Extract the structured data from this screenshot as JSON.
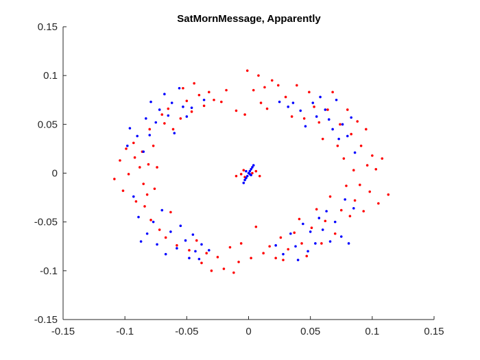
{
  "chart_data": {
    "type": "scatter",
    "title": "SatMornMessage, Apparently",
    "xlabel": "",
    "ylabel": "",
    "xlim": [
      -0.15,
      0.15
    ],
    "ylim": [
      -0.15,
      0.15
    ],
    "xticks": [
      -0.15,
      -0.1,
      -0.05,
      0,
      0.05,
      0.1,
      0.15
    ],
    "yticks": [
      -0.15,
      -0.1,
      -0.05,
      0,
      0.05,
      0.1,
      0.15
    ],
    "xtick_labels": [
      "-0.15",
      "-0.1",
      "-0.05",
      "0",
      "0.05",
      "0.1",
      "0.15"
    ],
    "ytick_labels": [
      "-0.15",
      "-0.1",
      "-0.05",
      "0",
      "0.05",
      "0.1",
      "0.15"
    ],
    "grid": false,
    "legend": "none",
    "series": [
      {
        "color": "#ff0000",
        "points": [
          [
            -0.1085,
            -0.006
          ],
          [
            -0.104,
            0.013
          ],
          [
            -0.099,
            0.025
          ],
          [
            -0.1015,
            -0.018
          ],
          [
            -0.097,
            -0.001
          ],
          [
            -0.093,
            0.031
          ],
          [
            -0.092,
            0.016
          ],
          [
            -0.091,
            -0.029
          ],
          [
            -0.088,
            0.006
          ],
          [
            -0.086,
            0.022
          ],
          [
            -0.085,
            -0.011
          ],
          [
            -0.084,
            -0.034
          ],
          [
            -0.082,
            -0.022
          ],
          [
            -0.081,
            0.009
          ],
          [
            -0.08,
            0.045
          ],
          [
            -0.079,
            -0.048
          ],
          [
            -0.077,
            0.028
          ],
          [
            -0.076,
            -0.016
          ],
          [
            -0.074,
            0.006
          ],
          [
            -0.072,
            -0.058
          ],
          [
            -0.07,
            0.06
          ],
          [
            -0.068,
            0.051
          ],
          [
            -0.067,
            -0.066
          ],
          [
            -0.065,
            0.066
          ],
          [
            -0.063,
            -0.04
          ],
          [
            -0.061,
            0.045
          ],
          [
            -0.058,
            -0.074
          ],
          [
            -0.055,
            0.056
          ],
          [
            -0.053,
            0.087
          ],
          [
            -0.05,
            0.074
          ],
          [
            -0.048,
            -0.079
          ],
          [
            -0.046,
            0.063
          ],
          [
            -0.044,
            0.092
          ],
          [
            -0.042,
            -0.069
          ],
          [
            -0.04,
            0.08
          ],
          [
            -0.038,
            -0.092
          ],
          [
            -0.036,
            0.069
          ],
          [
            -0.034,
            -0.082
          ],
          [
            -0.032,
            0.083
          ],
          [
            -0.03,
            -0.1
          ],
          [
            -0.028,
            0.075
          ],
          [
            -0.025,
            -0.086
          ],
          [
            -0.022,
            0.073
          ],
          [
            -0.02,
            -0.098
          ],
          [
            -0.018,
            0.085
          ],
          [
            -0.015,
            -0.076
          ],
          [
            -0.012,
            -0.102
          ],
          [
            -0.01,
            0.064
          ],
          [
            -0.008,
            -0.091
          ],
          [
            -0.006,
            -0.072
          ],
          [
            -0.004,
            0.003
          ],
          [
            -0.003,
            0.06
          ],
          [
            -0.001,
            0.105
          ],
          [
            0.002,
            -0.087
          ],
          [
            0.004,
            0.085
          ],
          [
            0.006,
            -0.055
          ],
          [
            0.008,
            0.1
          ],
          [
            0.01,
            0.072
          ],
          [
            0.012,
            -0.082
          ],
          [
            0.013,
            0.088
          ],
          [
            0.015,
            0.066
          ],
          [
            0.017,
            -0.075
          ],
          [
            0.019,
            0.095
          ],
          [
            0.022,
            -0.087
          ],
          [
            0.024,
            0.09
          ],
          [
            0.026,
            -0.066
          ],
          [
            0.028,
            -0.089
          ],
          [
            0.03,
            0.078
          ],
          [
            0.032,
            -0.078
          ],
          [
            0.035,
            0.058
          ],
          [
            0.037,
            -0.061
          ],
          [
            0.039,
            0.09
          ],
          [
            0.041,
            -0.047
          ],
          [
            0.043,
            -0.072
          ],
          [
            0.045,
            0.056
          ],
          [
            0.047,
            -0.085
          ],
          [
            0.049,
            0.083
          ],
          [
            0.051,
            -0.056
          ],
          [
            0.053,
            0.068
          ],
          [
            0.055,
            -0.037
          ],
          [
            0.057,
            0.052
          ],
          [
            0.059,
            -0.072
          ],
          [
            0.06,
            0.035
          ],
          [
            0.062,
            -0.049
          ],
          [
            0.064,
            0.065
          ],
          [
            0.066,
            -0.024
          ],
          [
            0.068,
            0.083
          ],
          [
            0.07,
            -0.062
          ],
          [
            0.072,
            0.028
          ],
          [
            0.074,
            0.05
          ],
          [
            0.075,
            -0.038
          ],
          [
            0.077,
            0.015
          ],
          [
            0.079,
            -0.013
          ],
          [
            0.08,
            0.065
          ],
          [
            0.082,
            -0.044
          ],
          [
            0.083,
            0.04
          ],
          [
            0.085,
            0.003
          ],
          [
            0.086,
            -0.028
          ],
          [
            0.088,
            0.053
          ],
          [
            0.09,
            -0.012
          ],
          [
            0.091,
            0.028
          ],
          [
            0.093,
            -0.039
          ],
          [
            0.095,
            0.045
          ],
          [
            0.096,
            0.008
          ],
          [
            0.098,
            -0.019
          ],
          [
            0.1,
            0.018
          ],
          [
            0.103,
            0.004
          ],
          [
            0.105,
            -0.031
          ],
          [
            0.108,
            0.015
          ],
          [
            0.113,
            -0.022
          ],
          [
            -0.01,
            -0.003
          ],
          [
            -0.006,
            -0.001
          ],
          [
            -0.003,
            -0.004
          ],
          [
            0.003,
            0.0
          ],
          [
            0.006,
            0.002
          ],
          [
            0.009,
            -0.003
          ]
        ]
      },
      {
        "color": "#0000ff",
        "points": [
          [
            -0.098,
            0.028
          ],
          [
            -0.096,
            0.046
          ],
          [
            -0.093,
            -0.024
          ],
          [
            -0.09,
            0.038
          ],
          [
            -0.089,
            -0.045
          ],
          [
            -0.087,
            -0.07
          ],
          [
            -0.085,
            0.022
          ],
          [
            -0.083,
            0.056
          ],
          [
            -0.082,
            -0.062
          ],
          [
            -0.08,
            0.039
          ],
          [
            -0.079,
            0.073
          ],
          [
            -0.077,
            -0.05
          ],
          [
            -0.075,
            0.052
          ],
          [
            -0.074,
            -0.073
          ],
          [
            -0.072,
            0.065
          ],
          [
            -0.07,
            -0.038
          ],
          [
            -0.068,
            0.081
          ],
          [
            -0.067,
            -0.083
          ],
          [
            -0.065,
            0.059
          ],
          [
            -0.063,
            -0.06
          ],
          [
            -0.062,
            0.072
          ],
          [
            -0.06,
            0.041
          ],
          [
            -0.058,
            -0.077
          ],
          [
            -0.056,
            0.087
          ],
          [
            -0.055,
            -0.054
          ],
          [
            -0.053,
            0.068
          ],
          [
            -0.051,
            -0.069
          ],
          [
            -0.05,
            0.058
          ],
          [
            -0.048,
            -0.087
          ],
          [
            -0.046,
            0.067
          ],
          [
            -0.045,
            -0.063
          ],
          [
            -0.043,
            -0.08
          ],
          [
            -0.04,
            -0.088
          ],
          [
            -0.038,
            -0.073
          ],
          [
            -0.036,
            0.075
          ],
          [
            -0.032,
            -0.079
          ],
          [
            0.022,
            -0.074
          ],
          [
            0.025,
            0.073
          ],
          [
            0.028,
            -0.083
          ],
          [
            0.032,
            0.068
          ],
          [
            0.034,
            -0.062
          ],
          [
            0.036,
            0.072
          ],
          [
            0.038,
            -0.075
          ],
          [
            0.04,
            -0.089
          ],
          [
            0.042,
            0.064
          ],
          [
            0.044,
            -0.052
          ],
          [
            0.046,
            0.048
          ],
          [
            0.048,
            -0.08
          ],
          [
            0.05,
            -0.06
          ],
          [
            0.052,
            0.072
          ],
          [
            0.054,
            -0.072
          ],
          [
            0.055,
            0.058
          ],
          [
            0.057,
            -0.046
          ],
          [
            0.058,
            0.078
          ],
          [
            0.06,
            -0.058
          ],
          [
            0.062,
            0.065
          ],
          [
            0.063,
            -0.039
          ],
          [
            0.065,
            0.055
          ],
          [
            0.066,
            -0.07
          ],
          [
            0.068,
            0.045
          ],
          [
            0.07,
            -0.05
          ],
          [
            0.071,
            0.075
          ],
          [
            0.073,
            0.035
          ],
          [
            0.075,
            -0.065
          ],
          [
            0.076,
            0.05
          ],
          [
            0.078,
            -0.027
          ],
          [
            0.08,
            0.038
          ],
          [
            0.081,
            -0.072
          ],
          [
            0.083,
            0.057
          ],
          [
            0.085,
            -0.036
          ],
          [
            0.086,
            0.021
          ],
          [
            -0.004,
            -0.01
          ],
          [
            -0.003,
            -0.007
          ],
          [
            -0.002,
            -0.005
          ],
          [
            -0.001,
            -0.003
          ],
          [
            0.0,
            0.0
          ],
          [
            0.001,
            0.002
          ],
          [
            0.002,
            0.004
          ],
          [
            0.003,
            0.006
          ],
          [
            0.004,
            0.008
          ],
          [
            0.002,
            -0.002
          ],
          [
            -0.002,
            0.002
          ],
          [
            0.001,
            -0.001
          ]
        ]
      }
    ]
  }
}
